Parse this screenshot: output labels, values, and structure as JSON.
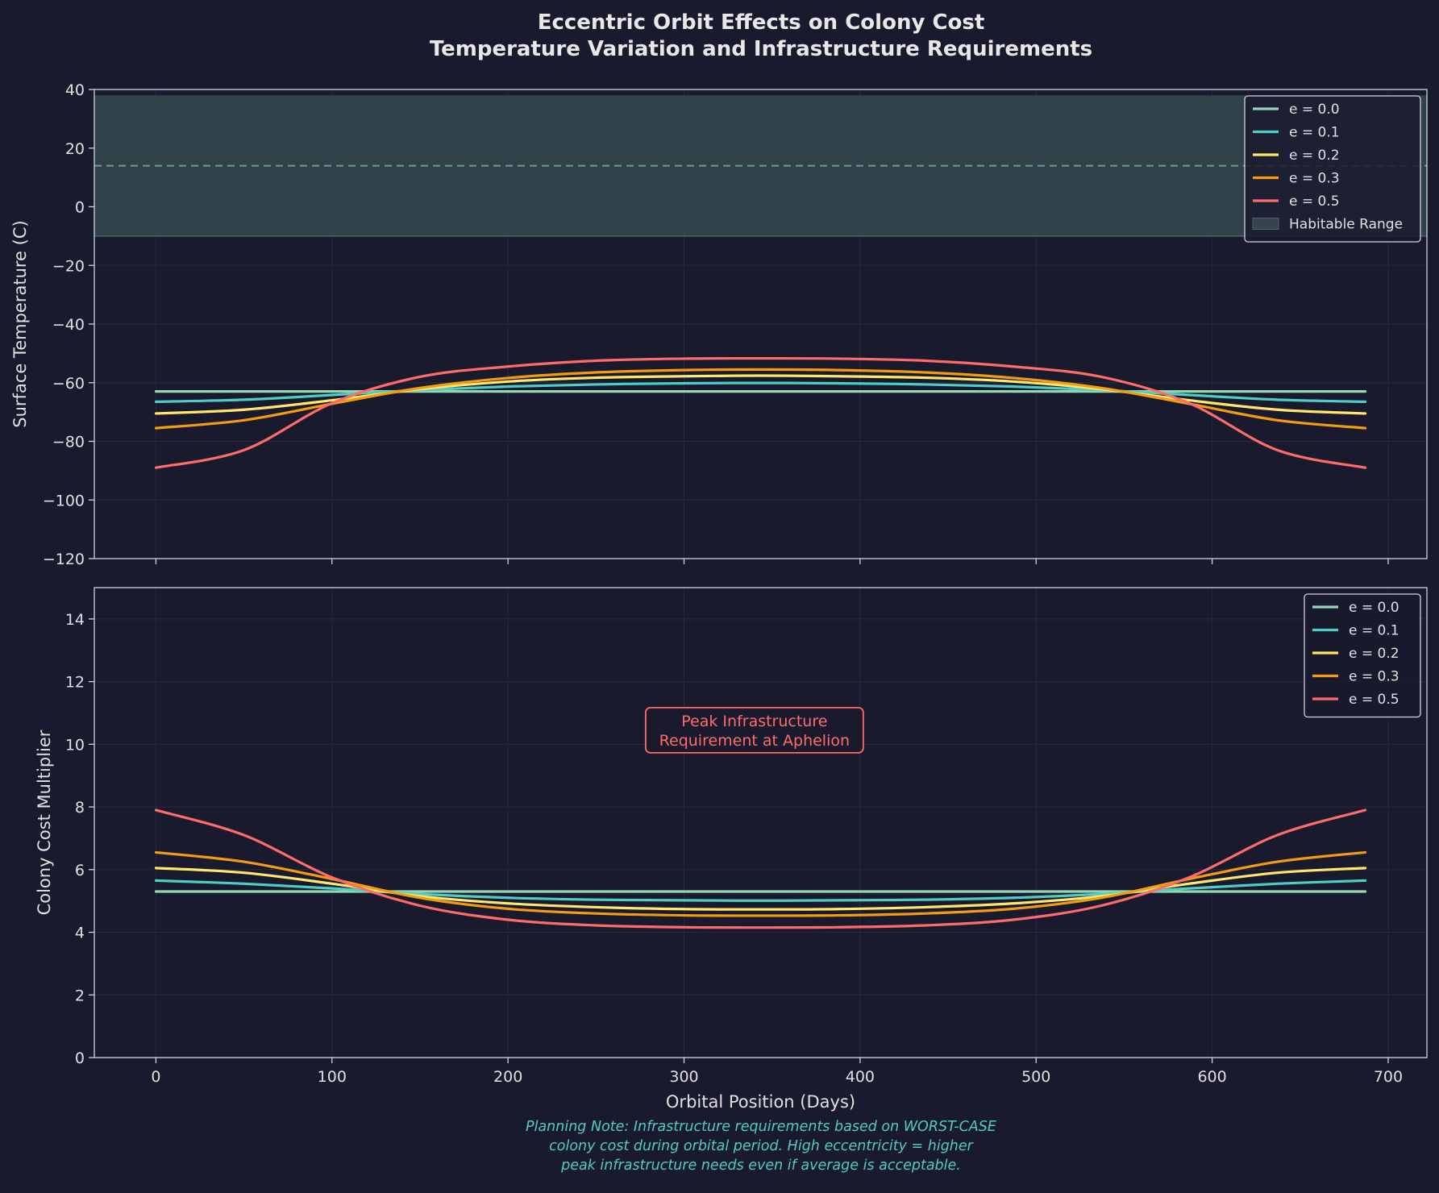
{
  "title_lines": [
    "Eccentric Orbit Effects on Colony Cost",
    "Temperature Variation and Infrastructure Requirements"
  ],
  "footer_note": [
    "Planning Note: Infrastructure requirements based on WORST-CASE",
    "colony cost during orbital period. High eccentricity = higher",
    "peak infrastructure needs even if average is acceptable."
  ],
  "colors": {
    "background": "#1a1a2e",
    "frame": "#cfd3dc",
    "grid": "#262a3f",
    "habitable_fill": "#34454e",
    "habitable_dash": "#7fbf9a",
    "e0.0": "#95d5b2",
    "e0.1": "#4ecdc4",
    "e0.2": "#ffe66d",
    "e0.3": "#f39c12",
    "e0.5": "#ff6b6b",
    "annotation": "#ff6b6b",
    "note": "#4ecdc4"
  },
  "chart_data": [
    {
      "type": "line",
      "panel": "top",
      "ylabel": "Surface Temperature (C)",
      "xlabel": "",
      "xlim": [
        -35,
        722
      ],
      "ylim": [
        -120,
        40
      ],
      "xticks": [
        0,
        100,
        200,
        300,
        400,
        500,
        600,
        700
      ],
      "yticks": [
        -120,
        -100,
        -80,
        -60,
        -40,
        -20,
        0,
        20,
        40
      ],
      "ytick_labels": [
        "−120",
        "−100",
        "−80",
        "−60",
        "−40",
        "−20",
        "0",
        "20",
        "40"
      ],
      "grid": true,
      "legend_position": "upper right",
      "habitable_band": {
        "label": "Habitable Range",
        "y_range": [
          -10,
          38
        ],
        "dashed_line_y": 14
      },
      "x": [
        0,
        50,
        100,
        150,
        200,
        250,
        300,
        343.5,
        387,
        437,
        487,
        537,
        587,
        637,
        687
      ],
      "series": [
        {
          "name": "e = 0.0",
          "color_key": "e0.0",
          "values": [
            -63,
            -63,
            -63,
            -63,
            -63,
            -63,
            -63,
            -63,
            -63,
            -63,
            -63,
            -63,
            -63,
            -63,
            -63
          ]
        },
        {
          "name": "e = 0.1",
          "color_key": "e0.1",
          "values": [
            -66.5,
            -65.8,
            -64.2,
            -62.5,
            -61.3,
            -60.6,
            -60.2,
            -60.1,
            -60.2,
            -60.6,
            -61.3,
            -62.5,
            -64.2,
            -65.8,
            -66.5
          ]
        },
        {
          "name": "e = 0.2",
          "color_key": "e0.2",
          "values": [
            -70.5,
            -69.2,
            -66,
            -62.2,
            -59.6,
            -58.3,
            -57.8,
            -57.6,
            -57.8,
            -58.3,
            -59.6,
            -62.2,
            -66,
            -69.2,
            -70.5
          ]
        },
        {
          "name": "e = 0.3",
          "color_key": "e0.3",
          "values": [
            -75.5,
            -72.8,
            -67.2,
            -61.8,
            -58.4,
            -56.5,
            -55.7,
            -55.5,
            -55.7,
            -56.5,
            -58.4,
            -61.8,
            -67.2,
            -72.8,
            -75.5
          ]
        },
        {
          "name": "e = 0.5",
          "color_key": "e0.5",
          "values": [
            -89,
            -83,
            -67,
            -58,
            -54.5,
            -52.5,
            -51.8,
            -51.7,
            -51.8,
            -52.5,
            -54.5,
            -58,
            -67,
            -83,
            -89
          ]
        }
      ]
    },
    {
      "type": "line",
      "panel": "bottom",
      "ylabel": "Colony Cost Multiplier",
      "xlabel": "Orbital Position (Days)",
      "xlim": [
        -35,
        722
      ],
      "ylim": [
        0,
        15
      ],
      "xticks": [
        0,
        100,
        200,
        300,
        400,
        500,
        600,
        700
      ],
      "yticks": [
        0,
        2,
        4,
        6,
        8,
        10,
        12,
        14
      ],
      "ytick_labels": [
        "0",
        "2",
        "4",
        "6",
        "8",
        "10",
        "12",
        "14"
      ],
      "grid": true,
      "legend_position": "upper right",
      "annotation": {
        "lines": [
          "Peak Infrastructure",
          "Requirement at Aphelion"
        ],
        "x": 340,
        "y": 10.5
      },
      "x": [
        0,
        50,
        100,
        150,
        200,
        250,
        300,
        343.5,
        387,
        437,
        487,
        537,
        587,
        637,
        687
      ],
      "series": [
        {
          "name": "e = 0.0",
          "color_key": "e0.0",
          "values": [
            5.3,
            5.3,
            5.3,
            5.3,
            5.3,
            5.3,
            5.3,
            5.3,
            5.3,
            5.3,
            5.3,
            5.3,
            5.3,
            5.3,
            5.3
          ]
        },
        {
          "name": "e = 0.1",
          "color_key": "e0.1",
          "values": [
            5.65,
            5.55,
            5.4,
            5.22,
            5.1,
            5.04,
            5.02,
            5.01,
            5.02,
            5.04,
            5.1,
            5.22,
            5.4,
            5.55,
            5.65
          ]
        },
        {
          "name": "e = 0.2",
          "color_key": "e0.2",
          "values": [
            6.05,
            5.9,
            5.55,
            5.15,
            4.92,
            4.8,
            4.74,
            4.73,
            4.74,
            4.8,
            4.92,
            5.15,
            5.55,
            5.9,
            6.05
          ]
        },
        {
          "name": "e = 0.3",
          "color_key": "e0.3",
          "values": [
            6.55,
            6.25,
            5.7,
            5.1,
            4.75,
            4.6,
            4.54,
            4.53,
            4.54,
            4.6,
            4.75,
            5.1,
            5.7,
            6.25,
            6.55
          ]
        },
        {
          "name": "e = 0.5",
          "color_key": "e0.5",
          "values": [
            7.9,
            7.1,
            5.75,
            4.85,
            4.4,
            4.22,
            4.16,
            4.15,
            4.16,
            4.22,
            4.4,
            4.85,
            5.75,
            7.1,
            7.9
          ]
        }
      ]
    }
  ]
}
